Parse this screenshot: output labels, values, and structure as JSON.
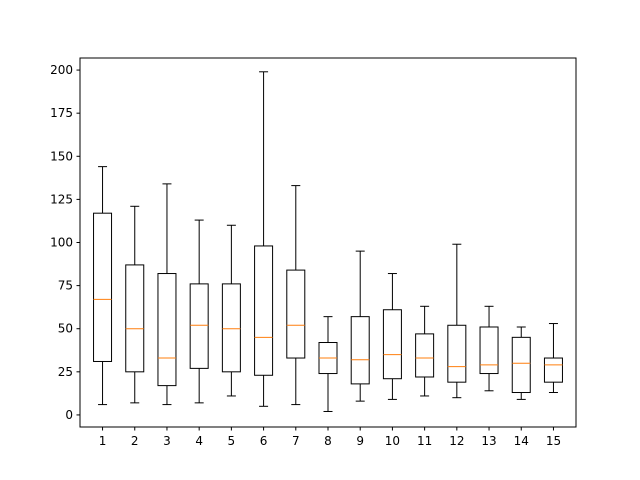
{
  "chart_data": {
    "type": "boxplot",
    "title": "",
    "xlabel": "",
    "ylabel": "",
    "categories": [
      "1",
      "2",
      "3",
      "4",
      "5",
      "6",
      "7",
      "8",
      "9",
      "10",
      "11",
      "12",
      "13",
      "14",
      "15"
    ],
    "ylim": [
      -7,
      207
    ],
    "yticks": [
      0,
      25,
      50,
      75,
      100,
      125,
      150,
      175,
      200
    ],
    "ytick_labels": [
      "0",
      "25",
      "50",
      "75",
      "100",
      "125",
      "150",
      "175",
      "200"
    ],
    "grid": false,
    "legend": "none",
    "boxes": [
      {
        "label": "1",
        "whisker_low": 6,
        "q1": 31,
        "median": 67,
        "q3": 117,
        "whisker_high": 144
      },
      {
        "label": "2",
        "whisker_low": 7,
        "q1": 25,
        "median": 50,
        "q3": 87,
        "whisker_high": 121
      },
      {
        "label": "3",
        "whisker_low": 6,
        "q1": 17,
        "median": 33,
        "q3": 82,
        "whisker_high": 134
      },
      {
        "label": "4",
        "whisker_low": 7,
        "q1": 27,
        "median": 52,
        "q3": 76,
        "whisker_high": 113
      },
      {
        "label": "5",
        "whisker_low": 11,
        "q1": 25,
        "median": 50,
        "q3": 76,
        "whisker_high": 110
      },
      {
        "label": "6",
        "whisker_low": 5,
        "q1": 23,
        "median": 45,
        "q3": 98,
        "whisker_high": 199
      },
      {
        "label": "7",
        "whisker_low": 6,
        "q1": 33,
        "median": 52,
        "q3": 84,
        "whisker_high": 133
      },
      {
        "label": "8",
        "whisker_low": 2,
        "q1": 24,
        "median": 33,
        "q3": 42,
        "whisker_high": 57
      },
      {
        "label": "9",
        "whisker_low": 8,
        "q1": 18,
        "median": 32,
        "q3": 57,
        "whisker_high": 95
      },
      {
        "label": "10",
        "whisker_low": 9,
        "q1": 21,
        "median": 35,
        "q3": 61,
        "whisker_high": 82
      },
      {
        "label": "11",
        "whisker_low": 11,
        "q1": 22,
        "median": 33,
        "q3": 47,
        "whisker_high": 63
      },
      {
        "label": "12",
        "whisker_low": 10,
        "q1": 19,
        "median": 28,
        "q3": 52,
        "whisker_high": 99
      },
      {
        "label": "13",
        "whisker_low": 14,
        "q1": 24,
        "median": 29,
        "q3": 51,
        "whisker_high": 63
      },
      {
        "label": "14",
        "whisker_low": 9,
        "q1": 13,
        "median": 30,
        "q3": 45,
        "whisker_high": 51
      },
      {
        "label": "15",
        "whisker_low": 13,
        "q1": 19,
        "median": 29,
        "q3": 33,
        "whisker_high": 53
      }
    ],
    "colors": {
      "box": "#000000",
      "median": "#ff7f0e",
      "axes": "#000000",
      "background": "#ffffff"
    }
  }
}
